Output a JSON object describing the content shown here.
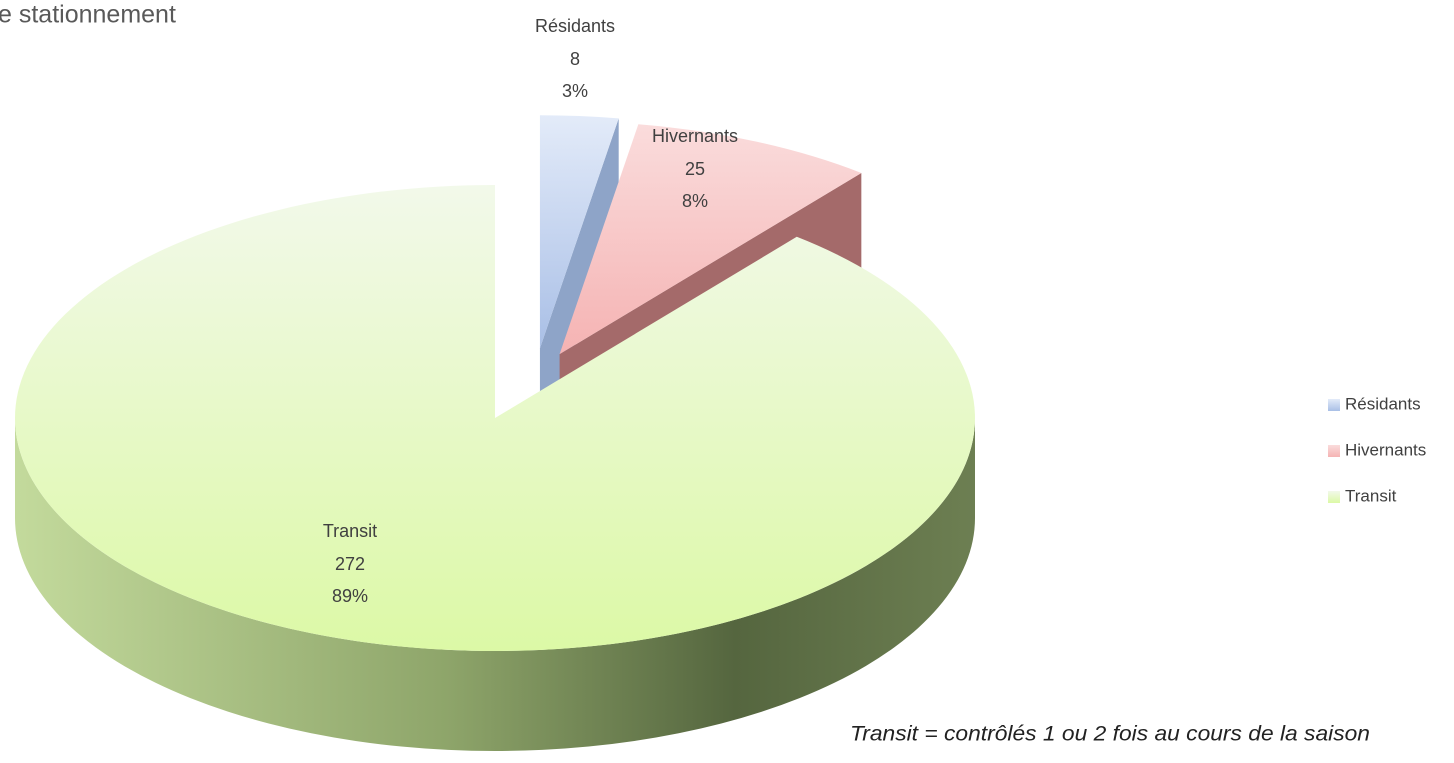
{
  "chart_data": {
    "type": "pie3d",
    "title": "e stationnement",
    "categories": [
      "Résidants",
      "Hivernants",
      "Transit"
    ],
    "values": [
      8,
      25,
      272
    ],
    "percent_labels": [
      "3%",
      "8%",
      "89%"
    ],
    "colors": [
      "#cddcf5",
      "#f9c6c6",
      "#e4f8c4"
    ],
    "legend": "right",
    "annotation": "Transit = contrôlés 1 ou 2 fois au cours de la saison"
  }
}
